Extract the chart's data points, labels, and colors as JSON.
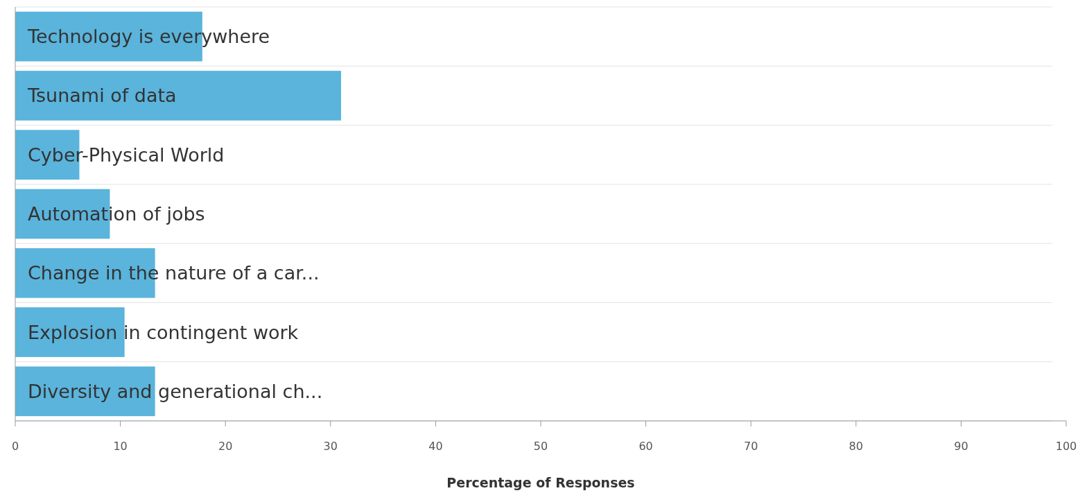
{
  "chart_data": {
    "type": "bar",
    "orientation": "horizontal",
    "xlabel": "Percentage of Responses",
    "categories": [
      "Technology is everywhere",
      "Tsunami of data",
      "Cyber-Physical World",
      "Automation of jobs",
      "Change in the nature of a car...",
      "Explosion in contingent work",
      "Diversity and generational ch..."
    ],
    "values": [
      17.8,
      31,
      6.1,
      9,
      13.3,
      10.4,
      13.3
    ],
    "color": "#5ab4dc",
    "xlim": [
      0,
      100
    ],
    "xticks": [
      0,
      10,
      20,
      30,
      40,
      50,
      60,
      70,
      80,
      90,
      100
    ],
    "grid": "y"
  }
}
